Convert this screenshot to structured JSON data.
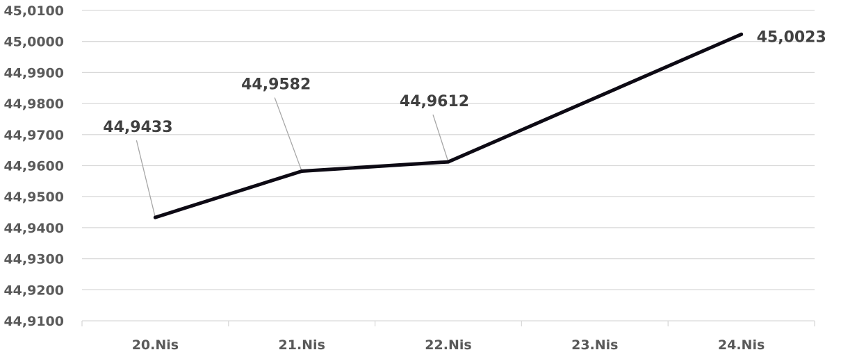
{
  "chart_data": {
    "type": "line",
    "categories": [
      "20.Nis",
      "21.Nis",
      "22.Nis",
      "23.Nis",
      "24.Nis"
    ],
    "series": [
      {
        "values": [
          44.9433,
          44.9582,
          44.9612,
          null,
          45.0023
        ]
      }
    ],
    "data_labels": [
      "44,9433",
      "44,9582",
      "44,9612",
      "",
      "45,0023"
    ],
    "y_tick_labels": [
      "44,9100",
      "44,9200",
      "44,9300",
      "44,9400",
      "44,9500",
      "44,9600",
      "44,9700",
      "44,9800",
      "44,9900",
      "45,0000",
      "45,0100"
    ],
    "ylim": [
      44.91,
      45.01
    ],
    "grid": true,
    "line_color": "#0d0a14",
    "grid_color": "#d9d9d9"
  }
}
